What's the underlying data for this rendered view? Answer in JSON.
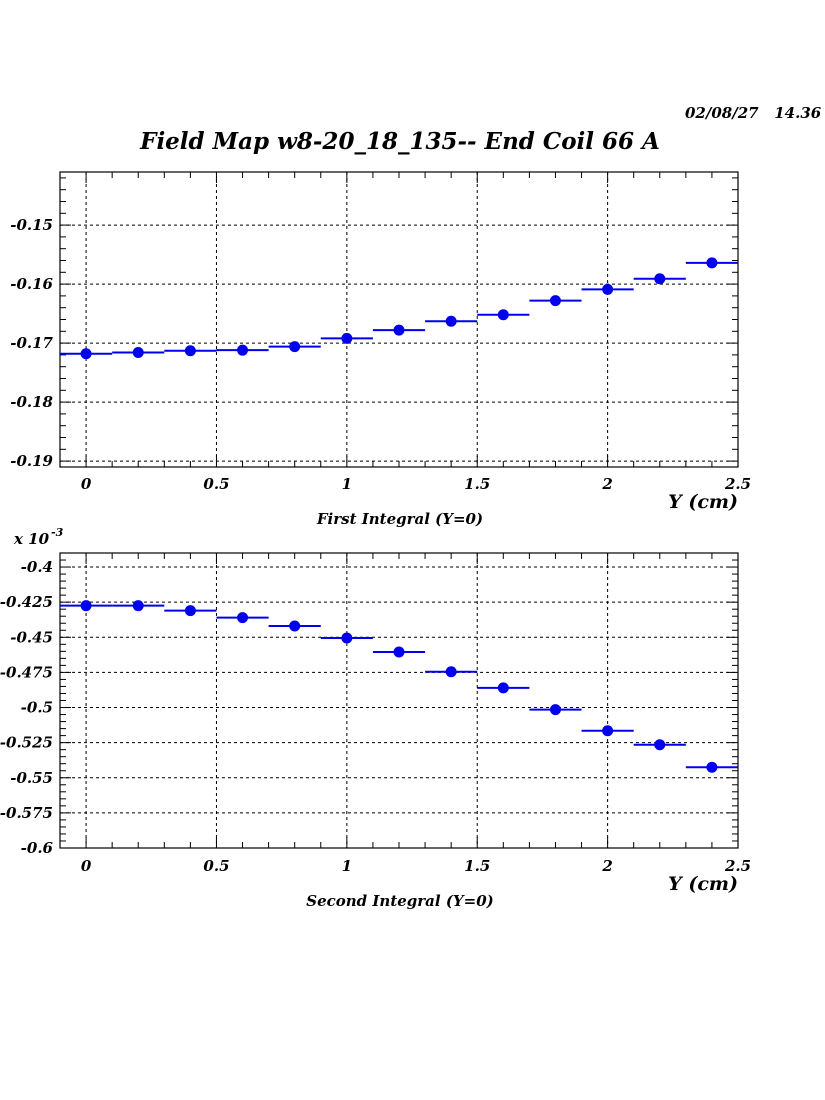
{
  "header": {
    "title": "Field Map w8-20_18_135-- End Coil 66 A",
    "timestamp": "02/08/27   14.36"
  },
  "chart_data": [
    {
      "type": "scatter",
      "title": "",
      "xlabel": "Y (cm)",
      "caption": "First Integral (Y=0)",
      "ylabel": "",
      "exponent_label": "",
      "xlim": [
        -0.1,
        2.5
      ],
      "ylim": [
        -0.191,
        -0.141
      ],
      "x_ticks": [
        0,
        0.5,
        1,
        1.5,
        2,
        2.5
      ],
      "x_tick_labels": [
        "0",
        "0.5",
        "1",
        "1.5",
        "2",
        "2.5"
      ],
      "y_ticks": [
        -0.19,
        -0.18,
        -0.17,
        -0.16,
        -0.15
      ],
      "y_tick_labels": [
        "-0.19",
        "-0.18",
        "-0.17",
        "-0.16",
        "-0.15"
      ],
      "grid": true,
      "marker_color": "#0000ee",
      "x_error_half_width": 0.1,
      "series": [
        {
          "x": [
            0,
            0.2,
            0.4,
            0.6,
            0.8,
            1.0,
            1.2,
            1.4,
            1.6,
            1.8,
            2.0,
            2.2,
            2.4
          ],
          "values": [
            -0.1718,
            -0.1716,
            -0.1713,
            -0.1712,
            -0.1706,
            -0.1692,
            -0.1678,
            -0.1663,
            -0.1652,
            -0.1628,
            -0.1609,
            -0.1591,
            -0.1564
          ]
        }
      ]
    },
    {
      "type": "scatter",
      "title": "",
      "xlabel": "Y (cm)",
      "caption": "Second Integral (Y=0)",
      "ylabel": "",
      "exponent_label": "x 10",
      "exponent_power": "-3",
      "xlim": [
        -0.1,
        2.5
      ],
      "ylim": [
        -0.6,
        -0.39
      ],
      "x_ticks": [
        0,
        0.5,
        1,
        1.5,
        2,
        2.5
      ],
      "x_tick_labels": [
        "0",
        "0.5",
        "1",
        "1.5",
        "2",
        "2.5"
      ],
      "y_ticks": [
        -0.6,
        -0.575,
        -0.55,
        -0.525,
        -0.5,
        -0.475,
        -0.45,
        -0.425,
        -0.4
      ],
      "y_tick_labels": [
        "-0.6",
        "-0.575",
        "-0.55",
        "-0.525",
        "-0.5",
        "-0.475",
        "-0.45",
        "-0.425",
        "-0.4"
      ],
      "grid": true,
      "marker_color": "#0000ee",
      "x_error_half_width": 0.1,
      "series": [
        {
          "x": [
            0,
            0.2,
            0.4,
            0.6,
            0.8,
            1.0,
            1.2,
            1.4,
            1.6,
            1.8,
            2.0,
            2.2,
            2.4
          ],
          "values": [
            -0.4275,
            -0.4275,
            -0.431,
            -0.436,
            -0.442,
            -0.4505,
            -0.4605,
            -0.4745,
            -0.486,
            -0.5015,
            -0.5165,
            -0.5265,
            -0.5425
          ]
        }
      ]
    }
  ]
}
